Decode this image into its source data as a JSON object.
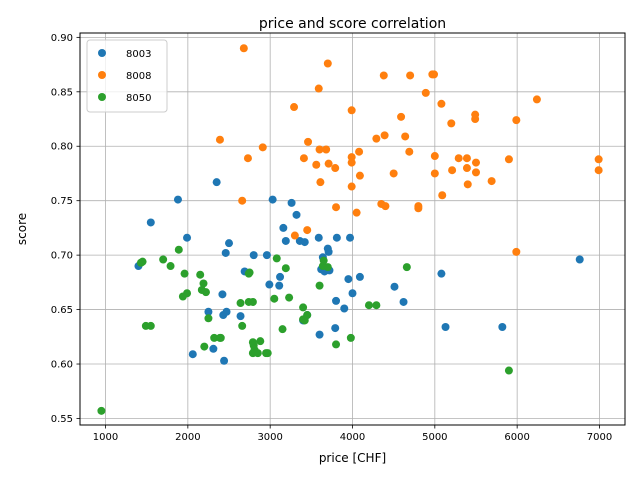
{
  "chart_data": {
    "type": "scatter",
    "title": "price and score correlation",
    "xlabel": "price [CHF]",
    "ylabel": "score",
    "xlim": [
      690,
      7310
    ],
    "ylim": [
      0.544,
      0.904
    ],
    "xticks": [
      1000,
      2000,
      3000,
      4000,
      5000,
      6000,
      7000
    ],
    "yticks": [
      0.55,
      0.6,
      0.65,
      0.7,
      0.75,
      0.8,
      0.85,
      0.9
    ],
    "xtick_labels": [
      "1000",
      "2000",
      "3000",
      "4000",
      "5000",
      "6000",
      "7000"
    ],
    "ytick_labels": [
      "0.55",
      "0.60",
      "0.65",
      "0.70",
      "0.75",
      "0.80",
      "0.85",
      "0.90"
    ],
    "grid": true,
    "legend_position": "top-left",
    "series": [
      {
        "name": "8003",
        "color": "#1f77b4",
        "points": [
          [
            1400,
            0.69
          ],
          [
            1550,
            0.73
          ],
          [
            1880,
            0.751
          ],
          [
            1990,
            0.716
          ],
          [
            2060,
            0.609
          ],
          [
            2250,
            0.648
          ],
          [
            2310,
            0.614
          ],
          [
            2350,
            0.767
          ],
          [
            2420,
            0.664
          ],
          [
            2430,
            0.645
          ],
          [
            2440,
            0.603
          ],
          [
            2460,
            0.702
          ],
          [
            2470,
            0.648
          ],
          [
            2500,
            0.711
          ],
          [
            2640,
            0.644
          ],
          [
            2690,
            0.685
          ],
          [
            2800,
            0.7
          ],
          [
            2960,
            0.7
          ],
          [
            2990,
            0.673
          ],
          [
            3030,
            0.751
          ],
          [
            3110,
            0.672
          ],
          [
            3120,
            0.68
          ],
          [
            3160,
            0.725
          ],
          [
            3190,
            0.713
          ],
          [
            3260,
            0.748
          ],
          [
            3320,
            0.737
          ],
          [
            3360,
            0.713
          ],
          [
            3400,
            0.64
          ],
          [
            3420,
            0.712
          ],
          [
            3450,
            0.645
          ],
          [
            3590,
            0.716
          ],
          [
            3600,
            0.627
          ],
          [
            3620,
            0.687
          ],
          [
            3640,
            0.698
          ],
          [
            3660,
            0.685
          ],
          [
            3700,
            0.706
          ],
          [
            3710,
            0.703
          ],
          [
            3720,
            0.686
          ],
          [
            3790,
            0.633
          ],
          [
            3800,
            0.658
          ],
          [
            3810,
            0.716
          ],
          [
            3900,
            0.651
          ],
          [
            3950,
            0.678
          ],
          [
            3970,
            0.716
          ],
          [
            4000,
            0.665
          ],
          [
            4090,
            0.68
          ],
          [
            4510,
            0.671
          ],
          [
            4620,
            0.657
          ],
          [
            5080,
            0.683
          ],
          [
            5130,
            0.634
          ],
          [
            5820,
            0.634
          ],
          [
            6760,
            0.696
          ]
        ]
      },
      {
        "name": "8008",
        "color": "#ff7f0e",
        "points": [
          [
            2390,
            0.806
          ],
          [
            2660,
            0.75
          ],
          [
            2680,
            0.89
          ],
          [
            2730,
            0.789
          ],
          [
            2910,
            0.799
          ],
          [
            3290,
            0.836
          ],
          [
            3300,
            0.718
          ],
          [
            3410,
            0.789
          ],
          [
            3450,
            0.723
          ],
          [
            3460,
            0.804
          ],
          [
            3560,
            0.783
          ],
          [
            3590,
            0.853
          ],
          [
            3600,
            0.797
          ],
          [
            3610,
            0.767
          ],
          [
            3680,
            0.797
          ],
          [
            3700,
            0.876
          ],
          [
            3710,
            0.784
          ],
          [
            3790,
            0.78
          ],
          [
            3800,
            0.744
          ],
          [
            3990,
            0.833
          ],
          [
            3990,
            0.785
          ],
          [
            3990,
            0.763
          ],
          [
            3990,
            0.79
          ],
          [
            4050,
            0.739
          ],
          [
            4080,
            0.795
          ],
          [
            4090,
            0.773
          ],
          [
            4290,
            0.807
          ],
          [
            4350,
            0.747
          ],
          [
            4380,
            0.865
          ],
          [
            4390,
            0.81
          ],
          [
            4400,
            0.745
          ],
          [
            4500,
            0.775
          ],
          [
            4590,
            0.827
          ],
          [
            4640,
            0.809
          ],
          [
            4690,
            0.795
          ],
          [
            4700,
            0.865
          ],
          [
            4800,
            0.743
          ],
          [
            4800,
            0.745
          ],
          [
            4890,
            0.849
          ],
          [
            4970,
            0.866
          ],
          [
            4990,
            0.866
          ],
          [
            5000,
            0.791
          ],
          [
            5000,
            0.775
          ],
          [
            5080,
            0.839
          ],
          [
            5090,
            0.755
          ],
          [
            5200,
            0.821
          ],
          [
            5210,
            0.778
          ],
          [
            5290,
            0.789
          ],
          [
            5390,
            0.78
          ],
          [
            5390,
            0.789
          ],
          [
            5400,
            0.765
          ],
          [
            5490,
            0.829
          ],
          [
            5490,
            0.825
          ],
          [
            5500,
            0.785
          ],
          [
            5500,
            0.776
          ],
          [
            5690,
            0.768
          ],
          [
            5900,
            0.788
          ],
          [
            5990,
            0.824
          ],
          [
            5990,
            0.703
          ],
          [
            6240,
            0.843
          ],
          [
            6990,
            0.788
          ],
          [
            6990,
            0.778
          ]
        ]
      },
      {
        "name": "8050",
        "color": "#2ca02c",
        "points": [
          [
            950,
            0.557
          ],
          [
            1430,
            0.693
          ],
          [
            1450,
            0.694
          ],
          [
            1490,
            0.635
          ],
          [
            1550,
            0.635
          ],
          [
            1700,
            0.696
          ],
          [
            1790,
            0.69
          ],
          [
            1890,
            0.705
          ],
          [
            1940,
            0.662
          ],
          [
            1960,
            0.683
          ],
          [
            1990,
            0.665
          ],
          [
            2150,
            0.682
          ],
          [
            2170,
            0.668
          ],
          [
            2190,
            0.674
          ],
          [
            2200,
            0.616
          ],
          [
            2220,
            0.666
          ],
          [
            2250,
            0.642
          ],
          [
            2320,
            0.624
          ],
          [
            2390,
            0.624
          ],
          [
            2400,
            0.624
          ],
          [
            2640,
            0.656
          ],
          [
            2660,
            0.635
          ],
          [
            2740,
            0.657
          ],
          [
            2740,
            0.683
          ],
          [
            2750,
            0.684
          ],
          [
            2790,
            0.657
          ],
          [
            2790,
            0.62
          ],
          [
            2790,
            0.61
          ],
          [
            2800,
            0.617
          ],
          [
            2810,
            0.613
          ],
          [
            2850,
            0.61
          ],
          [
            2880,
            0.621
          ],
          [
            2950,
            0.61
          ],
          [
            2970,
            0.61
          ],
          [
            3050,
            0.66
          ],
          [
            3080,
            0.697
          ],
          [
            3150,
            0.632
          ],
          [
            3190,
            0.688
          ],
          [
            3230,
            0.661
          ],
          [
            3400,
            0.652
          ],
          [
            3400,
            0.641
          ],
          [
            3420,
            0.64
          ],
          [
            3450,
            0.645
          ],
          [
            3600,
            0.672
          ],
          [
            3640,
            0.69
          ],
          [
            3650,
            0.695
          ],
          [
            3700,
            0.689
          ],
          [
            3800,
            0.618
          ],
          [
            3980,
            0.624
          ],
          [
            4200,
            0.654
          ],
          [
            4290,
            0.654
          ],
          [
            4660,
            0.689
          ],
          [
            5900,
            0.594
          ]
        ]
      }
    ]
  }
}
